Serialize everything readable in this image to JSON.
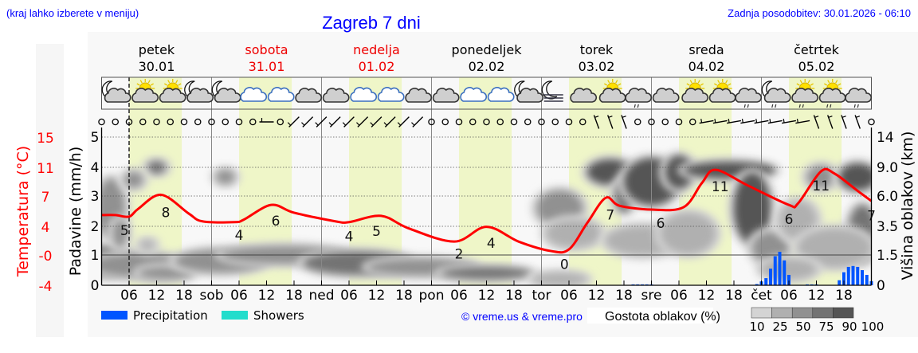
{
  "header": {
    "left_note": "(kraj lahko izberete v meniju)",
    "title": "Zagreb 7 dni",
    "updated": "Zadnja posodobitev: 30.01.2026 - 06:10"
  },
  "colors": {
    "link_blue": "#0000ff",
    "temperature": "#ff0000",
    "precipitation": "#0055ff",
    "showers": "#22ddcc",
    "daylight": "#eff6c8"
  },
  "days": [
    {
      "name": "petek",
      "date": "30.01",
      "color": "#000000"
    },
    {
      "name": "sobota",
      "date": "31.01",
      "color": "#ee0000"
    },
    {
      "name": "nedelja",
      "date": "01.02",
      "color": "#ee0000"
    },
    {
      "name": "ponedeljek",
      "date": "02.02",
      "color": "#000000"
    },
    {
      "name": "torek",
      "date": "03.02",
      "color": "#000000"
    },
    {
      "name": "sreda",
      "date": "04.02",
      "color": "#000000"
    },
    {
      "name": "četrtek",
      "date": "05.02",
      "color": "#000000"
    }
  ],
  "legend": {
    "precipitation": "Precipitation",
    "showers": "Showers",
    "copyright": "© vreme.us & vreme.pro",
    "cloud_density_title": "Gostota oblakov (%)",
    "cloud_density_levels": [
      "10",
      "25",
      "50",
      "75",
      "90",
      "100"
    ],
    "cloud_density_colors": [
      "#d4d4d4",
      "#b0b0b0",
      "#919191",
      "#737373",
      "#555555"
    ]
  },
  "chart_data": {
    "type": "line",
    "x_unit": "hours from 30.01 00:00",
    "x_range": [
      0,
      168
    ],
    "now_hour": 6,
    "daylight": [
      6,
      17.5
    ],
    "x_tick_labels": [
      "",
      "06",
      "12",
      "18",
      "sob",
      "06",
      "12",
      "18",
      "ned",
      "06",
      "12",
      "18",
      "pon",
      "06",
      "12",
      "18",
      "tor",
      "06",
      "12",
      "18",
      "sre",
      "06",
      "12",
      "18",
      "čet",
      "06",
      "12",
      "18"
    ],
    "axes": {
      "temperature": {
        "label": "Temperatura (°C)",
        "ticks": [
          "15",
          "11",
          "7",
          "4",
          "-0",
          "-4"
        ],
        "range": [
          -4,
          15
        ]
      },
      "precipitation": {
        "label": "Padavine (mm/h)",
        "ticks": [
          "5",
          "4",
          "3",
          "2",
          "1",
          "0"
        ],
        "range": [
          0,
          5
        ]
      },
      "cloud_height": {
        "label": "Višina oblakov (km)",
        "ticks": [
          "14",
          "9.0",
          "6.0",
          "3.5",
          "1.5",
          "0"
        ]
      }
    },
    "temperature": [
      [
        0,
        5.0
      ],
      [
        3,
        5.0
      ],
      [
        6,
        4.8
      ],
      [
        8,
        5.8
      ],
      [
        13,
        7.6
      ],
      [
        19,
        5.2
      ],
      [
        22,
        4.2
      ],
      [
        29,
        4.1
      ],
      [
        31,
        4.4
      ],
      [
        37,
        6.3
      ],
      [
        42,
        5.3
      ],
      [
        51,
        4.2
      ],
      [
        54,
        4.1
      ],
      [
        61,
        4.9
      ],
      [
        67,
        3.3
      ],
      [
        77,
        1.6
      ],
      [
        84,
        3.5
      ],
      [
        91,
        1.6
      ],
      [
        98,
        0.4
      ],
      [
        102,
        0.6
      ],
      [
        106,
        4.0
      ],
      [
        110,
        7.2
      ],
      [
        113,
        6.2
      ],
      [
        120,
        5.7
      ],
      [
        127,
        6.0
      ],
      [
        131,
        9.1
      ],
      [
        134,
        10.8
      ],
      [
        141,
        8.8
      ],
      [
        150,
        6.3
      ],
      [
        152,
        6.5
      ],
      [
        157,
        10.6
      ],
      [
        160,
        10.3
      ],
      [
        165,
        8.1
      ],
      [
        168,
        6.8
      ]
    ],
    "temperature_labels": [
      [
        5,
        "5"
      ],
      [
        14,
        "8"
      ],
      [
        30,
        "4"
      ],
      [
        38,
        "6"
      ],
      [
        54,
        "4"
      ],
      [
        60,
        "5"
      ],
      [
        78,
        "2"
      ],
      [
        85,
        "4"
      ],
      [
        101,
        "0"
      ],
      [
        111,
        "7"
      ],
      [
        122,
        "6"
      ],
      [
        135,
        "11"
      ],
      [
        150,
        "6"
      ],
      [
        157,
        "11"
      ],
      [
        168,
        "7"
      ]
    ],
    "precipitation": [
      [
        116,
        0.03
      ],
      [
        117,
        0.03
      ],
      [
        118,
        0.03
      ],
      [
        119,
        0.03
      ],
      [
        120,
        0.03
      ],
      [
        143,
        0.04
      ],
      [
        144,
        0.13
      ],
      [
        145,
        0.24
      ],
      [
        146,
        0.56
      ],
      [
        147,
        0.98
      ],
      [
        148,
        1.13
      ],
      [
        149,
        0.84
      ],
      [
        150,
        0.35
      ],
      [
        154,
        0.03
      ],
      [
        155,
        0.03
      ],
      [
        156,
        0.03
      ],
      [
        161,
        0.17
      ],
      [
        162,
        0.44
      ],
      [
        163,
        0.62
      ],
      [
        164,
        0.65
      ],
      [
        165,
        0.62
      ],
      [
        166,
        0.51
      ],
      [
        167,
        0.35
      ],
      [
        168,
        0.14
      ]
    ],
    "cloud_cover": [
      [
        2,
        5,
        3,
        2.5,
        60
      ],
      [
        1,
        1.2,
        6,
        0.8,
        75
      ],
      [
        8,
        1.0,
        10,
        0.6,
        60
      ],
      [
        14,
        0.6,
        6,
        0.3,
        50
      ],
      [
        26,
        1.2,
        10,
        0.6,
        50
      ],
      [
        40,
        1.5,
        14,
        0.5,
        60
      ],
      [
        56,
        1.1,
        12,
        0.6,
        75
      ],
      [
        70,
        0.9,
        12,
        0.4,
        60
      ],
      [
        84,
        0.6,
        10,
        0.3,
        75
      ],
      [
        12,
        9,
        2,
        0.8,
        75
      ],
      [
        7,
        7.7,
        2,
        0.8,
        60
      ],
      [
        27,
        8,
        2,
        0.7,
        50
      ],
      [
        4,
        3,
        1.5,
        1,
        60
      ],
      [
        10,
        2.2,
        1.5,
        0.3,
        40
      ],
      [
        100,
        0.3,
        6,
        0.3,
        25
      ],
      [
        100,
        5,
        5,
        1.5,
        50
      ],
      [
        111,
        8.5,
        5,
        1.5,
        90
      ],
      [
        114,
        6,
        2,
        1.5,
        75
      ],
      [
        103,
        3,
        6,
        1,
        30
      ],
      [
        120,
        7.5,
        6,
        2.5,
        90
      ],
      [
        126,
        8.5,
        3,
        2,
        90
      ],
      [
        118,
        2.5,
        8,
        1,
        40
      ],
      [
        137,
        8.7,
        10,
        1,
        90
      ],
      [
        142,
        5,
        4,
        3,
        90
      ],
      [
        146,
        2,
        4,
        1,
        60
      ],
      [
        152,
        4,
        4,
        1.5,
        40
      ],
      [
        157,
        8,
        3,
        1.2,
        60
      ],
      [
        165,
        8,
        4,
        1.5,
        90
      ],
      [
        166,
        3,
        3,
        2,
        75
      ],
      [
        160,
        2,
        8,
        1.2,
        40
      ],
      [
        128,
        3,
        6,
        1.5,
        40
      ],
      [
        150,
        0.8,
        6,
        0.5,
        25
      ]
    ],
    "weather_icons": [
      "moon-cloud",
      "sun-cloud",
      "sun-cloud",
      "moon-cloud",
      "moon-cloud",
      "cloud-blue",
      "cloud-blue",
      "cloud-gray",
      "cloud-gray",
      "cloud-blue",
      "cloud-blue",
      "cloud-gray",
      "cloud-gray",
      "cloud-blue",
      "cloud-blue",
      "moon-cloud",
      "moon-fog",
      "cloud-gray",
      "sun-cloud",
      "cloud-rain",
      "cloud-gray",
      "sun-cloud",
      "sun-cloud",
      "cloud-rain",
      "moon-cloud-rain",
      "sun-cloud-rain",
      "sun-cloud-rain",
      "cloud-rain"
    ],
    "wind_direction": [
      null,
      null,
      null,
      null,
      null,
      null,
      null,
      null,
      null,
      null,
      null,
      null,
      270,
      null,
      225,
      225,
      225,
      225,
      225,
      225,
      225,
      225,
      225,
      225,
      null,
      null,
      null,
      null,
      null,
      null,
      null,
      null,
      null,
      null,
      null,
      null,
      340,
      340,
      340,
      null,
      null,
      null,
      null,
      null,
      260,
      260,
      260,
      260,
      260,
      260,
      260,
      260,
      340,
      340,
      340,
      340,
      null
    ]
  }
}
